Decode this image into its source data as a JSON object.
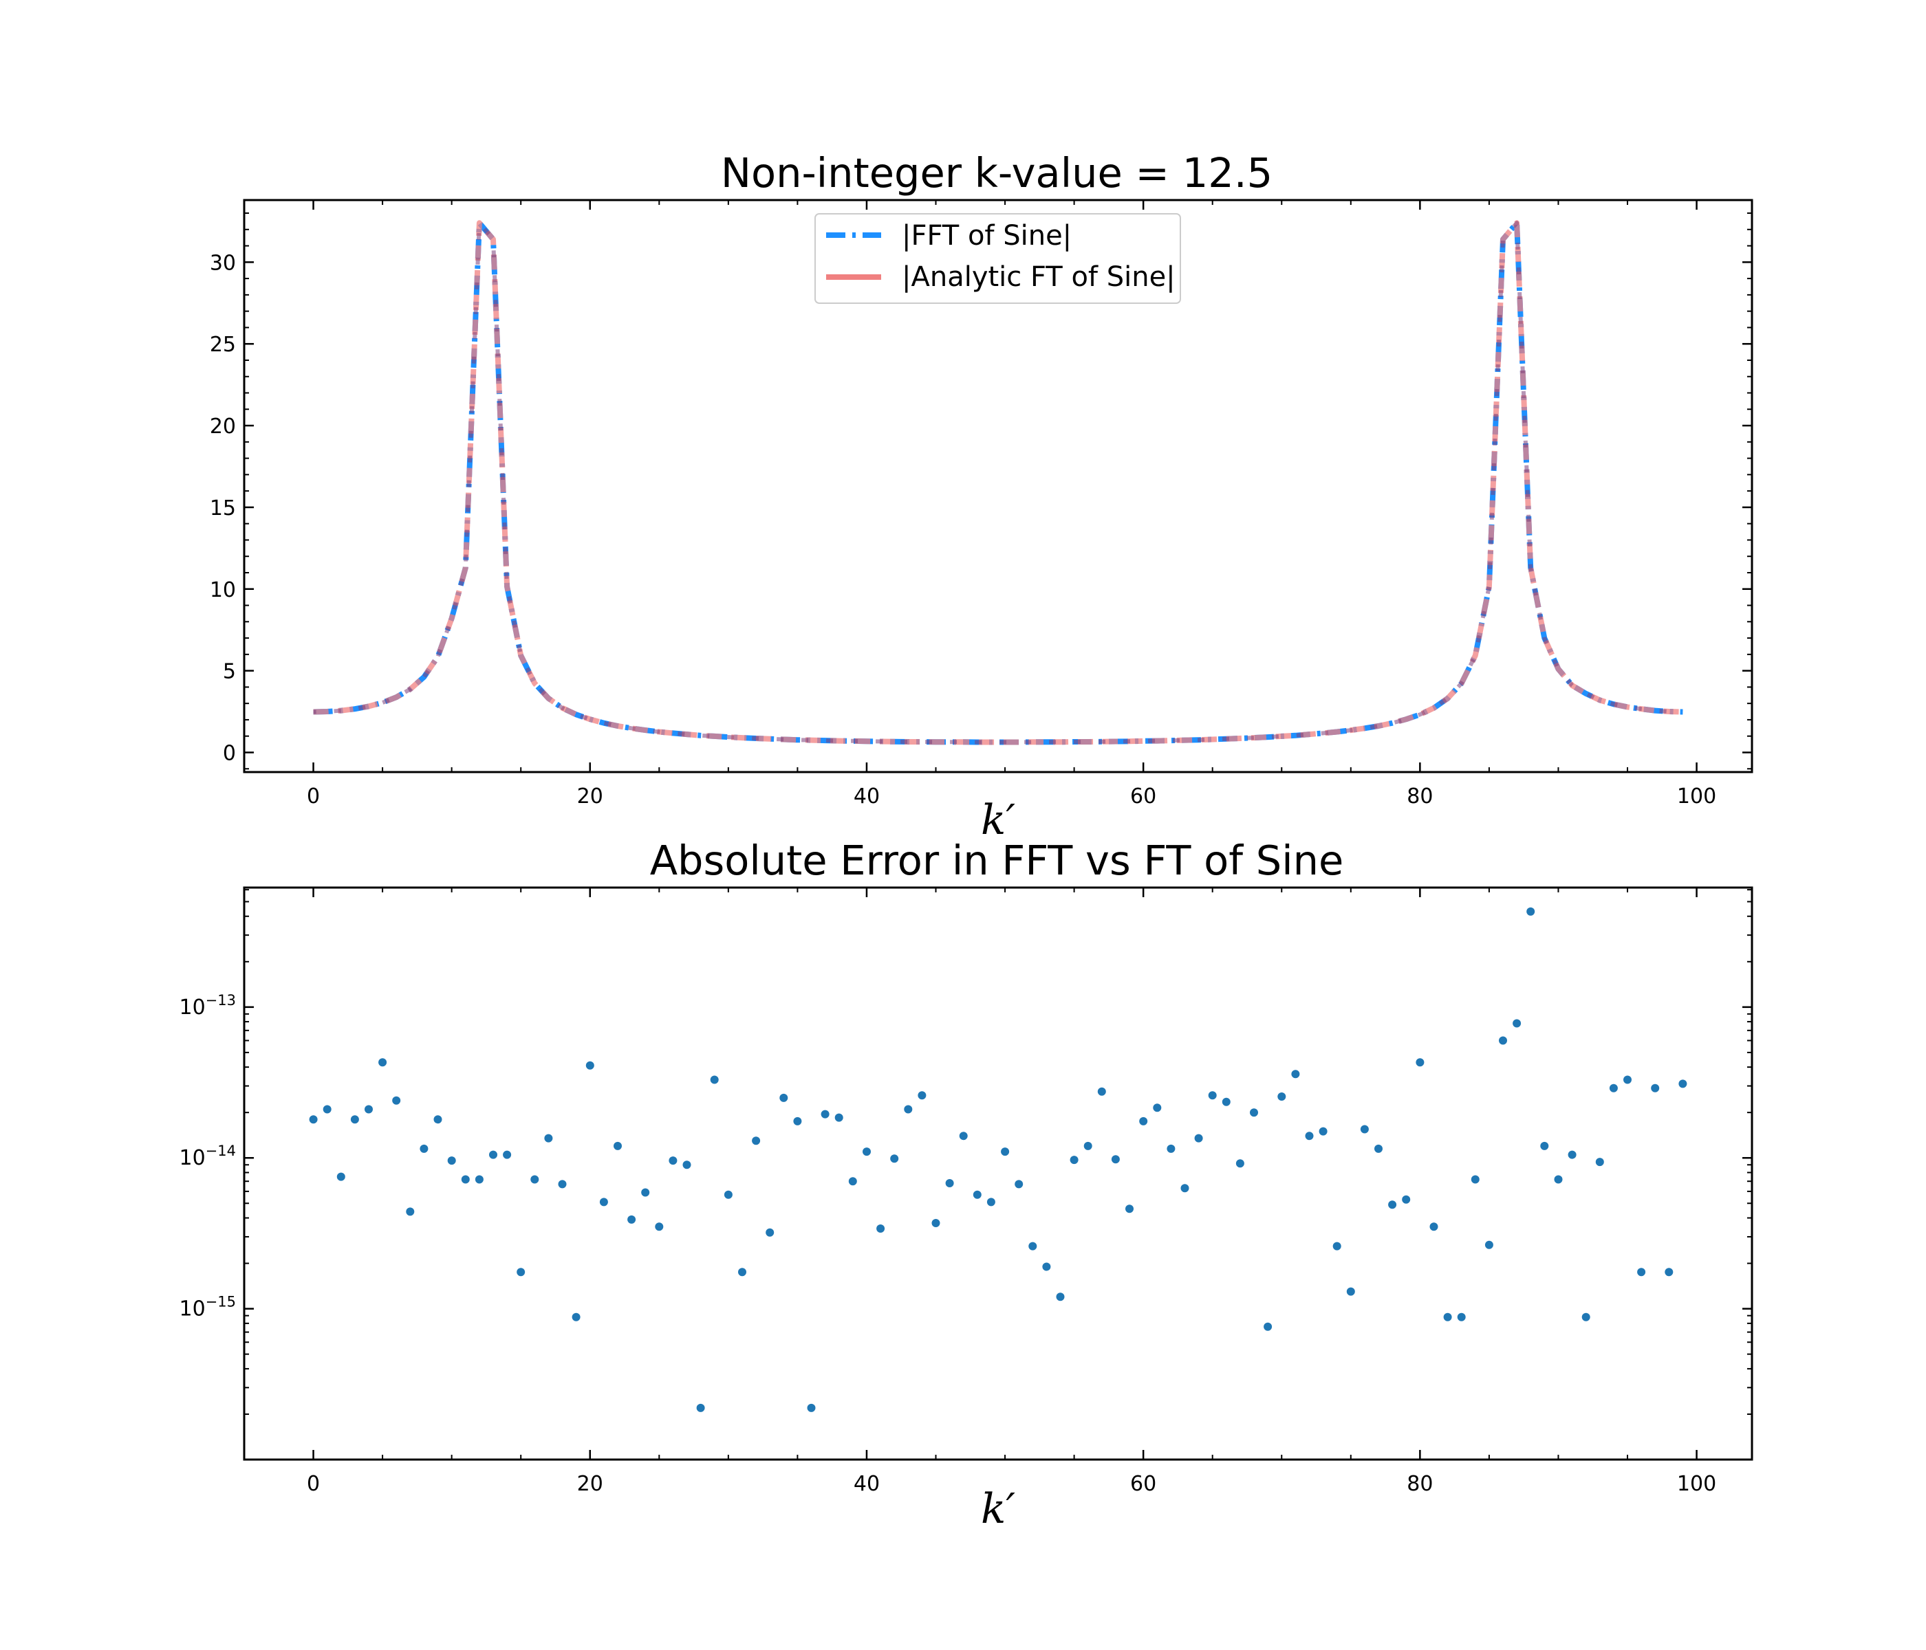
{
  "chart_data": [
    {
      "type": "line",
      "title": "Non-integer k-value = 12.5",
      "xlabel": "k′",
      "ylabel": "",
      "xlim": [
        -5,
        104
      ],
      "ylim": [
        -1.2,
        33.8
      ],
      "xticks": [
        0,
        20,
        40,
        60,
        80,
        100
      ],
      "yticks": [
        0,
        5,
        10,
        15,
        20,
        25,
        30
      ],
      "legend_position": "upper center",
      "x": [
        0,
        1,
        2,
        3,
        4,
        5,
        6,
        7,
        8,
        9,
        10,
        11,
        12,
        13,
        14,
        15,
        16,
        17,
        18,
        19,
        20,
        21,
        22,
        23,
        24,
        25,
        26,
        27,
        28,
        29,
        30,
        31,
        32,
        33,
        34,
        35,
        36,
        37,
        38,
        39,
        40,
        41,
        42,
        43,
        44,
        45,
        46,
        47,
        48,
        49,
        50,
        51,
        52,
        53,
        54,
        55,
        56,
        57,
        58,
        59,
        60,
        61,
        62,
        63,
        64,
        65,
        66,
        67,
        68,
        69,
        70,
        71,
        72,
        73,
        74,
        75,
        76,
        77,
        78,
        79,
        80,
        81,
        82,
        83,
        84,
        85,
        86,
        87,
        88,
        89,
        90,
        91,
        92,
        93,
        94,
        95,
        96,
        97,
        98,
        99
      ],
      "series": [
        {
          "name": "|FFT of Sine|",
          "color": "#1e90ff",
          "style": "dashdot",
          "values": [
            2.48,
            2.5,
            2.56,
            2.66,
            2.82,
            3.05,
            3.38,
            3.87,
            4.62,
            5.86,
            8.21,
            11.3,
            32.4,
            31.4,
            10.15,
            5.93,
            4.23,
            3.31,
            2.72,
            2.32,
            2.03,
            1.8,
            1.62,
            1.48,
            1.36,
            1.26,
            1.18,
            1.11,
            1.04,
            0.99,
            0.94,
            0.9,
            0.86,
            0.83,
            0.8,
            0.77,
            0.75,
            0.73,
            0.71,
            0.7,
            0.68,
            0.67,
            0.66,
            0.65,
            0.65,
            0.64,
            0.64,
            0.64,
            0.63,
            0.63,
            0.63,
            0.63,
            0.64,
            0.64,
            0.64,
            0.65,
            0.65,
            0.66,
            0.67,
            0.68,
            0.7,
            0.71,
            0.73,
            0.75,
            0.77,
            0.8,
            0.83,
            0.86,
            0.9,
            0.94,
            0.99,
            1.04,
            1.11,
            1.18,
            1.26,
            1.36,
            1.48,
            1.62,
            1.8,
            2.03,
            2.32,
            2.72,
            3.31,
            4.23,
            5.93,
            10.15,
            31.4,
            32.4,
            11.3,
            7.0,
            5.1,
            4.1,
            3.6,
            3.2,
            2.95,
            2.78,
            2.66,
            2.56,
            2.5,
            2.48
          ]
        },
        {
          "name": "|Analytic FT of Sine|",
          "color": "#f08080",
          "style": "dashed",
          "values": [
            2.48,
            2.5,
            2.56,
            2.66,
            2.82,
            3.05,
            3.38,
            3.87,
            4.62,
            5.86,
            8.21,
            11.3,
            32.4,
            31.4,
            10.15,
            5.93,
            4.23,
            3.31,
            2.72,
            2.32,
            2.03,
            1.8,
            1.62,
            1.48,
            1.36,
            1.26,
            1.18,
            1.11,
            1.04,
            0.99,
            0.94,
            0.9,
            0.86,
            0.83,
            0.8,
            0.77,
            0.75,
            0.73,
            0.71,
            0.7,
            0.68,
            0.67,
            0.66,
            0.65,
            0.65,
            0.64,
            0.64,
            0.64,
            0.63,
            0.63,
            0.63,
            0.63,
            0.64,
            0.64,
            0.64,
            0.65,
            0.65,
            0.66,
            0.67,
            0.68,
            0.7,
            0.71,
            0.73,
            0.75,
            0.77,
            0.8,
            0.83,
            0.86,
            0.9,
            0.94,
            0.99,
            1.04,
            1.11,
            1.18,
            1.26,
            1.36,
            1.48,
            1.62,
            1.8,
            2.03,
            2.32,
            2.72,
            3.31,
            4.23,
            5.93,
            10.15,
            31.4,
            32.4,
            11.3,
            7.0,
            5.1,
            4.1,
            3.6,
            3.2,
            2.95,
            2.78,
            2.66,
            2.56,
            2.5,
            2.48
          ]
        }
      ],
      "grid": false
    },
    {
      "type": "scatter",
      "title": "Absolute Error in FFT vs FT of Sine",
      "xlabel": "k′",
      "ylabel": "",
      "yscale": "log",
      "xlim": [
        -5,
        104
      ],
      "ylim": [
        1e-16,
        6.2e-13
      ],
      "xticks": [
        0,
        20,
        40,
        60,
        80,
        100
      ],
      "yticks": [
        1e-15,
        1e-14,
        1e-13
      ],
      "ytick_labels": [
        "10^-15",
        "10^-14",
        "10^-13"
      ],
      "color": "#1f77b4",
      "x": [
        0,
        1,
        2,
        3,
        4,
        5,
        6,
        7,
        8,
        9,
        10,
        11,
        12,
        13,
        14,
        15,
        16,
        17,
        18,
        19,
        20,
        21,
        22,
        23,
        24,
        25,
        26,
        27,
        28,
        29,
        30,
        31,
        32,
        33,
        34,
        35,
        36,
        37,
        38,
        39,
        40,
        41,
        42,
        43,
        44,
        45,
        46,
        47,
        48,
        49,
        50,
        51,
        52,
        53,
        54,
        55,
        56,
        57,
        58,
        59,
        60,
        61,
        62,
        63,
        64,
        65,
        66,
        67,
        68,
        69,
        70,
        71,
        72,
        73,
        74,
        75,
        76,
        77,
        78,
        79,
        80,
        81,
        82,
        83,
        84,
        85,
        86,
        87,
        88,
        89,
        90,
        91,
        92,
        93,
        94,
        95,
        96,
        97,
        98,
        99
      ],
      "values": [
        1.8e-14,
        2.1e-14,
        7.5e-15,
        1.8e-14,
        2.1e-14,
        4.3e-14,
        2.4e-14,
        4.4e-15,
        1.15e-14,
        1.8e-14,
        9.6e-15,
        7.2e-15,
        7.2e-15,
        1.05e-14,
        1.05e-14,
        1.75e-15,
        7.2e-15,
        1.35e-14,
        6.7e-15,
        8.8e-16,
        4.1e-14,
        5.1e-15,
        1.2e-14,
        3.9e-15,
        5.9e-15,
        3.5e-15,
        9.6e-15,
        9e-15,
        2.2e-16,
        3.3e-14,
        5.7e-15,
        1.75e-15,
        1.3e-14,
        3.2e-15,
        2.5e-14,
        1.75e-14,
        2.2e-16,
        1.95e-14,
        1.85e-14,
        7e-15,
        1.1e-14,
        3.4e-15,
        9.9e-15,
        2.1e-14,
        2.6e-14,
        3.7e-15,
        6.8e-15,
        1.4e-14,
        5.7e-15,
        5.1e-15,
        1.1e-14,
        6.7e-15,
        2.6e-15,
        1.9e-15,
        1.2e-15,
        9.7e-15,
        1.2e-14,
        2.75e-14,
        9.8e-15,
        4.6e-15,
        1.75e-14,
        2.15e-14,
        1.15e-14,
        6.3e-15,
        1.35e-14,
        2.6e-14,
        2.35e-14,
        9.2e-15,
        2e-14,
        7.6e-16,
        2.55e-14,
        3.6e-14,
        1.4e-14,
        1.5e-14,
        2.6e-15,
        1.3e-15,
        1.55e-14,
        1.15e-14,
        4.9e-15,
        5.3e-15,
        4.3e-14,
        3.5e-15,
        8.8e-16,
        8.8e-16,
        7.2e-15,
        2.65e-15,
        6e-14,
        7.8e-14,
        4.3e-13,
        1.2e-14,
        7.2e-15,
        1.05e-14,
        8.8e-16,
        9.4e-15,
        2.9e-14,
        3.3e-14,
        1.75e-15,
        2.9e-14,
        1.75e-15,
        3.1e-14
      ]
    }
  ]
}
